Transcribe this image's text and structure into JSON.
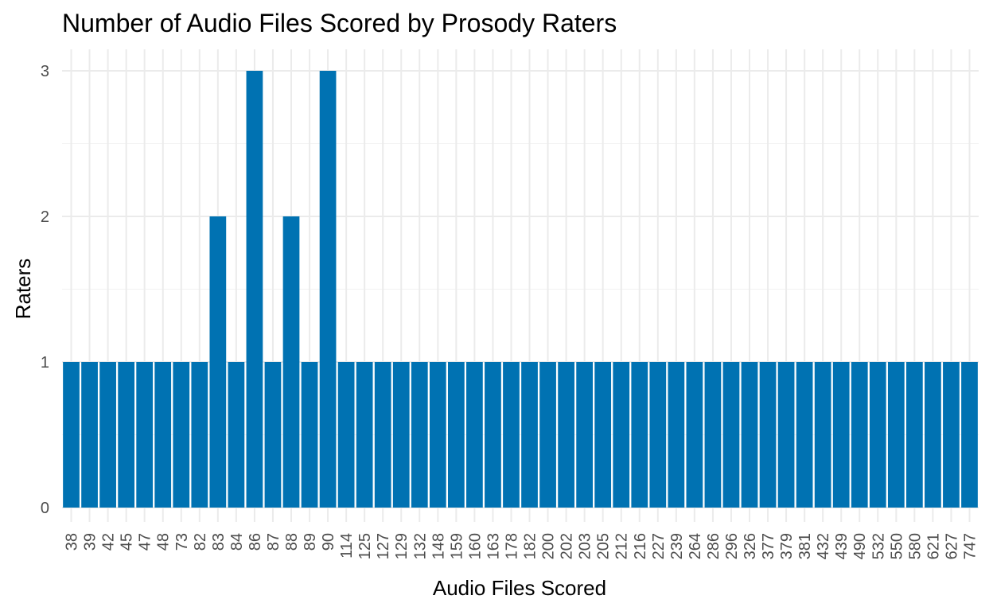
{
  "chart_data": {
    "type": "bar",
    "title": "Number of Audio Files Scored by Prosody Raters",
    "xlabel": "Audio Files Scored",
    "ylabel": "Raters",
    "categories": [
      "38",
      "39",
      "42",
      "45",
      "47",
      "48",
      "73",
      "82",
      "83",
      "84",
      "86",
      "87",
      "88",
      "89",
      "90",
      "114",
      "125",
      "127",
      "129",
      "132",
      "148",
      "159",
      "160",
      "163",
      "178",
      "182",
      "200",
      "202",
      "203",
      "205",
      "212",
      "216",
      "227",
      "239",
      "264",
      "286",
      "296",
      "326",
      "377",
      "379",
      "381",
      "432",
      "439",
      "490",
      "532",
      "550",
      "580",
      "621",
      "627",
      "747"
    ],
    "values": [
      1,
      1,
      1,
      1,
      1,
      1,
      1,
      1,
      2,
      1,
      3,
      1,
      2,
      1,
      3,
      1,
      1,
      1,
      1,
      1,
      1,
      1,
      1,
      1,
      1,
      1,
      1,
      1,
      1,
      1,
      1,
      1,
      1,
      1,
      1,
      1,
      1,
      1,
      1,
      1,
      1,
      1,
      1,
      1,
      1,
      1,
      1,
      1,
      1,
      1
    ],
    "ylim": [
      0,
      3
    ],
    "yticks": [
      0,
      1,
      2,
      3
    ],
    "bar_color": "#0072B2",
    "grid": true,
    "legend": "none"
  }
}
